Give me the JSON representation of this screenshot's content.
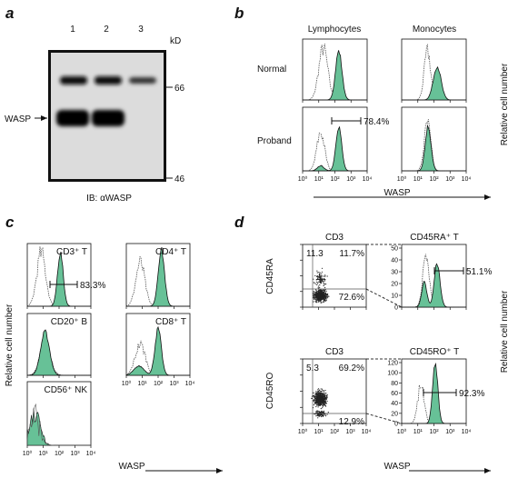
{
  "panels": {
    "a": {
      "label": "a",
      "lanes": [
        "1",
        "2",
        "3"
      ],
      "unit": "kD",
      "markers": [
        "66",
        "46"
      ],
      "band_label": "WASP",
      "caption": "IB: αWASP"
    },
    "b": {
      "label": "b",
      "columns": [
        "Lymphocytes",
        "Monocytes"
      ],
      "rows": [
        "Normal",
        "Proband"
      ],
      "annotation": "78.4%",
      "x_ticks": [
        "10⁰",
        "10¹",
        "10²",
        "10³",
        "10⁴"
      ],
      "x_label": "WASP",
      "y_label": "Relative cell number"
    },
    "c": {
      "label": "c",
      "titles": [
        "CD3⁺ T",
        "CD4⁺ T",
        "CD20⁺ B",
        "CD8⁺ T",
        "CD56⁺ NK"
      ],
      "annotation": "83.3%",
      "x_ticks": [
        "10⁰",
        "10¹",
        "10²",
        "10³",
        "10⁴"
      ],
      "x_label": "WASP",
      "y_label": "Relative cell number"
    },
    "d": {
      "label": "d",
      "scatter_title": "CD3",
      "scatter_y_labels": [
        "CD45RA",
        "CD45RO"
      ],
      "quadrants": [
        [
          "11.3",
          "11.7%",
          "72.6%"
        ],
        [
          "5.3",
          "69.2%",
          "12.9%"
        ]
      ],
      "hist_titles": [
        "CD45RA⁺ T",
        "CD45RO⁺ T"
      ],
      "annotations": [
        "51.1%",
        "92.3%"
      ],
      "y_ticks": [
        [
          0,
          10,
          20,
          30,
          40,
          50
        ],
        [
          0,
          20,
          40,
          60,
          80,
          100,
          120
        ]
      ],
      "x_ticks": [
        "10⁰",
        "10¹",
        "10²",
        "10³",
        "10⁴"
      ],
      "x_label": "WASP",
      "y_label": "Relative cell number"
    }
  }
}
